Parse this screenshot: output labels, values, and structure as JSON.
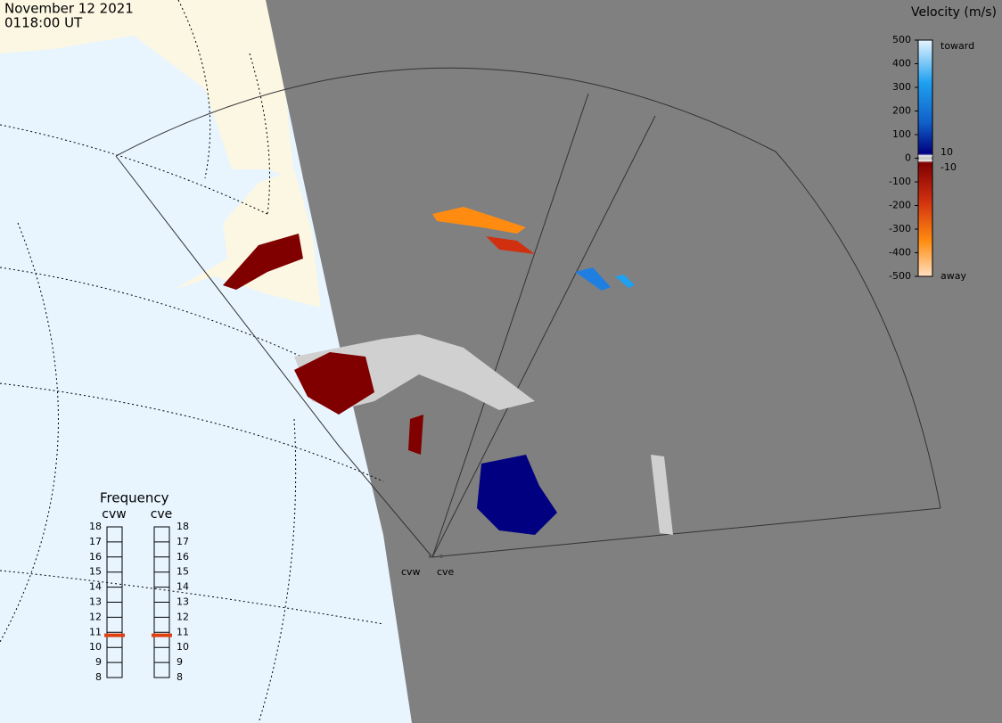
{
  "header": {
    "date": "November 12 2021",
    "time": "0118:00 UT"
  },
  "velocity_scale": {
    "title": "Velocity (m/s)",
    "lim": [
      -500,
      500
    ],
    "ticks": [
      500,
      400,
      300,
      200,
      100,
      0,
      -100,
      -200,
      -300,
      -400,
      -500
    ],
    "inner_ticks": [
      10,
      -10
    ],
    "toward": "toward",
    "away": "away"
  },
  "frequency": {
    "title": "Frequency",
    "lim": [
      8,
      18
    ],
    "ticks": [
      8,
      9,
      10,
      11,
      12,
      13,
      14,
      15,
      16,
      17,
      18
    ],
    "radars": [
      {
        "name": "cvw",
        "value": 10.8
      },
      {
        "name": "cve",
        "value": 10.8
      }
    ]
  },
  "radar_labels": [
    "cvw",
    "cve"
  ]
}
